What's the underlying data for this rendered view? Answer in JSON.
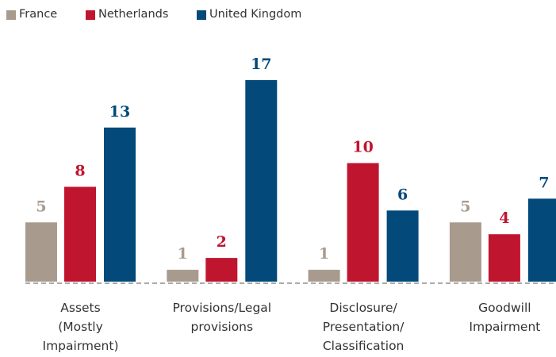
{
  "chart_data": {
    "type": "bar",
    "categories": [
      "Assets\n(Mostly\nImpairment)",
      "Provisions/Legal\nprovisions",
      "Disclosure/\nPresentation/\nClassification",
      "Goodwill\nImpairment"
    ],
    "series": [
      {
        "name": "France",
        "color": "#a89b8e",
        "values": [
          5,
          1,
          1,
          5
        ]
      },
      {
        "name": "Netherlands",
        "color": "#c0152f",
        "values": [
          8,
          2,
          10,
          4
        ]
      },
      {
        "name": "United Kingdom",
        "color": "#034a7a",
        "values": [
          13,
          17,
          6,
          7
        ]
      }
    ],
    "legend": "top-left"
  }
}
